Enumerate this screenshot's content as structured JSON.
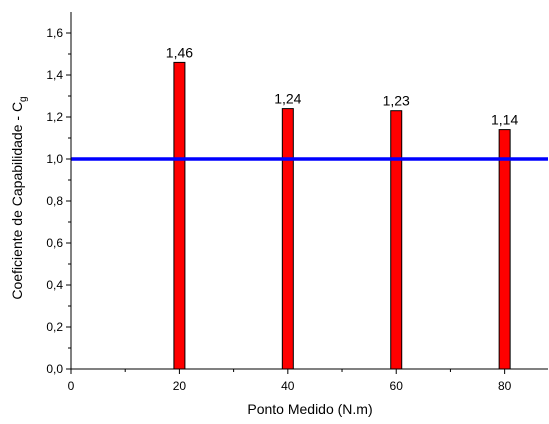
{
  "chart_data": {
    "type": "bar",
    "title": "",
    "xlabel": "Ponto Medido (N.m)",
    "ylabel_main": "Coeficiente de Capabilidade - C",
    "ylabel_sub": "g",
    "x": [
      20,
      40,
      60,
      80
    ],
    "values": [
      1.46,
      1.24,
      1.23,
      1.14
    ],
    "data_labels": [
      "1,46",
      "1,24",
      "1,23",
      "1,14"
    ],
    "xlim": [
      0,
      88
    ],
    "ylim": [
      0,
      1.7
    ],
    "x_ticks": [
      0,
      20,
      40,
      60,
      80
    ],
    "x_tick_labels": [
      "0",
      "20",
      "40",
      "60",
      "80"
    ],
    "y_ticks": [
      0,
      0.2,
      0.4,
      0.6,
      0.8,
      1.0,
      1.2,
      1.4,
      1.6
    ],
    "y_tick_labels": [
      "0,0",
      "0,2",
      "0,4",
      "0,6",
      "0,8",
      "1,0",
      "1,2",
      "1,4",
      "1,6"
    ],
    "reference_line": {
      "y": 1.0,
      "color": "#0000ff"
    },
    "bar_color": "#ff0000",
    "grid": false,
    "legend": "none"
  }
}
